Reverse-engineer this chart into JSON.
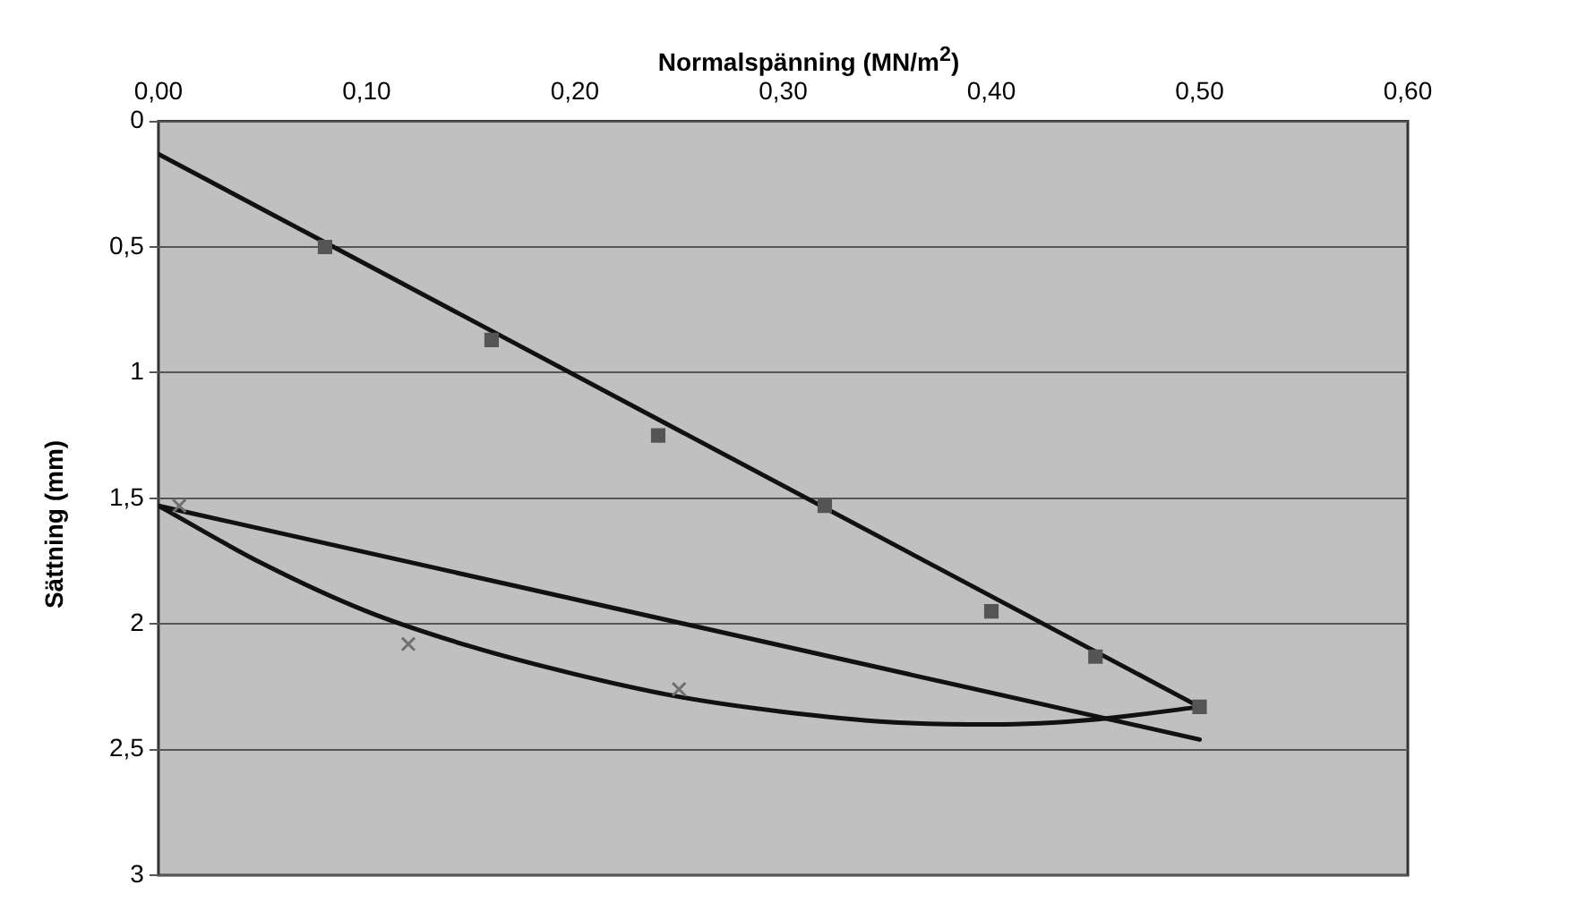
{
  "chart_data": {
    "type": "scatter",
    "xlabel": "Normalspänning (MN/m$^{2}$)",
    "ylabel": "Sättning (mm)",
    "xlim": [
      0,
      0.6
    ],
    "xticks": [
      {
        "value": 0,
        "label": "0,00"
      },
      {
        "value": 0.1,
        "label": "0,10"
      },
      {
        "value": 0.2,
        "label": "0,20"
      },
      {
        "value": 0.3,
        "label": "0,30"
      },
      {
        "value": 0.4,
        "label": "0,40"
      },
      {
        "value": 0.5,
        "label": "0,50"
      },
      {
        "value": 0.6,
        "label": "0,60"
      }
    ],
    "ylim": [
      3,
      0
    ],
    "yticks": [
      0,
      {
        "value": 0.5,
        "label": "0,5"
      },
      1,
      {
        "value": 1.5,
        "label": "1,5"
      },
      2,
      {
        "value": 2.5,
        "label": "2,5"
      },
      3
    ],
    "grid": "y",
    "legend": false,
    "series": [
      {
        "marker": "square",
        "color": "#555555",
        "x": [
          0.08,
          0.16,
          0.24,
          0.32,
          0.4,
          0.45,
          0.5
        ],
        "values": [
          0.5,
          0.87,
          1.25,
          1.53,
          1.95,
          2.13,
          2.33
        ]
      },
      {
        "marker": "cross",
        "color": "#707070",
        "x": [
          0.01,
          0.12,
          0.25
        ],
        "values": [
          1.53,
          2.08,
          2.26
        ]
      },
      {
        "type": "line",
        "marker": "none",
        "color": "#111111",
        "x": [
          0,
          0.5
        ],
        "values": [
          0.13,
          2.33
        ]
      },
      {
        "type": "line",
        "marker": "none",
        "color": "#111111",
        "x": [
          0,
          0.5
        ],
        "values": [
          1.53,
          2.46
        ]
      },
      {
        "type": "line",
        "marker": "none",
        "color": "#111111",
        "x": [
          0,
          0.05,
          0.1,
          0.15,
          0.2,
          0.25,
          0.3,
          0.35,
          0.4,
          0.45,
          0.5
        ],
        "values": [
          1.53,
          1.76,
          1.95,
          2.09,
          2.2,
          2.29,
          2.35,
          2.39,
          2.4,
          2.38,
          2.33
        ]
      }
    ]
  }
}
